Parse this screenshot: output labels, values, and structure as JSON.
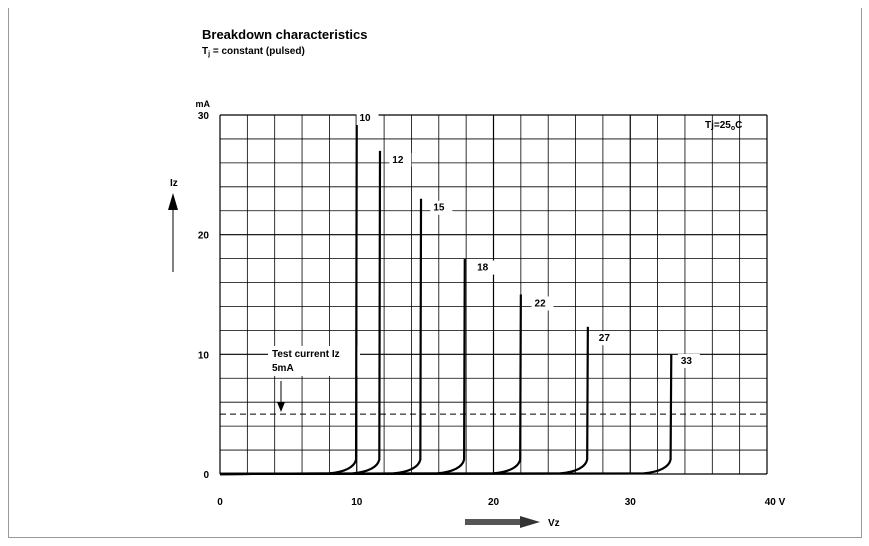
{
  "title": "Breakdown characteristics",
  "subtitle": "Tj = constant (pulsed)",
  "chart_data": {
    "type": "line",
    "title": "Breakdown characteristics",
    "subtitle": "Tj = constant (pulsed)",
    "xlabel": "Vz",
    "ylabel": "Iz",
    "yunit": "mA",
    "xunit": "V",
    "xlim": [
      0,
      40
    ],
    "ylim": [
      0,
      30
    ],
    "xticks": [
      "0",
      "10",
      "20",
      "30",
      "40 V"
    ],
    "yticks": [
      "0",
      "10",
      "20",
      "30"
    ],
    "grid": true,
    "condition_label": "Tj=25oC",
    "test_current_label": [
      "Test current Iz",
      "5mA"
    ],
    "test_current_value": 5,
    "series": [
      {
        "name": "10",
        "vz": 10.0,
        "top": 30,
        "label_x": 10.2,
        "label_y": 29.5
      },
      {
        "name": "12",
        "vz": 11.7,
        "top": 27,
        "label_x": 12.6,
        "label_y": 26.0
      },
      {
        "name": "15",
        "vz": 14.7,
        "top": 23,
        "label_x": 15.6,
        "label_y": 22.0
      },
      {
        "name": "18",
        "vz": 17.9,
        "top": 18,
        "label_x": 18.8,
        "label_y": 17.0
      },
      {
        "name": "22",
        "vz": 22.0,
        "top": 15,
        "label_x": 23.0,
        "label_y": 14.0
      },
      {
        "name": "27",
        "vz": 26.9,
        "top": 12.3,
        "label_x": 27.7,
        "label_y": 11.1
      },
      {
        "name": "33",
        "vz": 33.0,
        "top": 10,
        "label_x": 33.7,
        "label_y": 9.2
      }
    ]
  }
}
